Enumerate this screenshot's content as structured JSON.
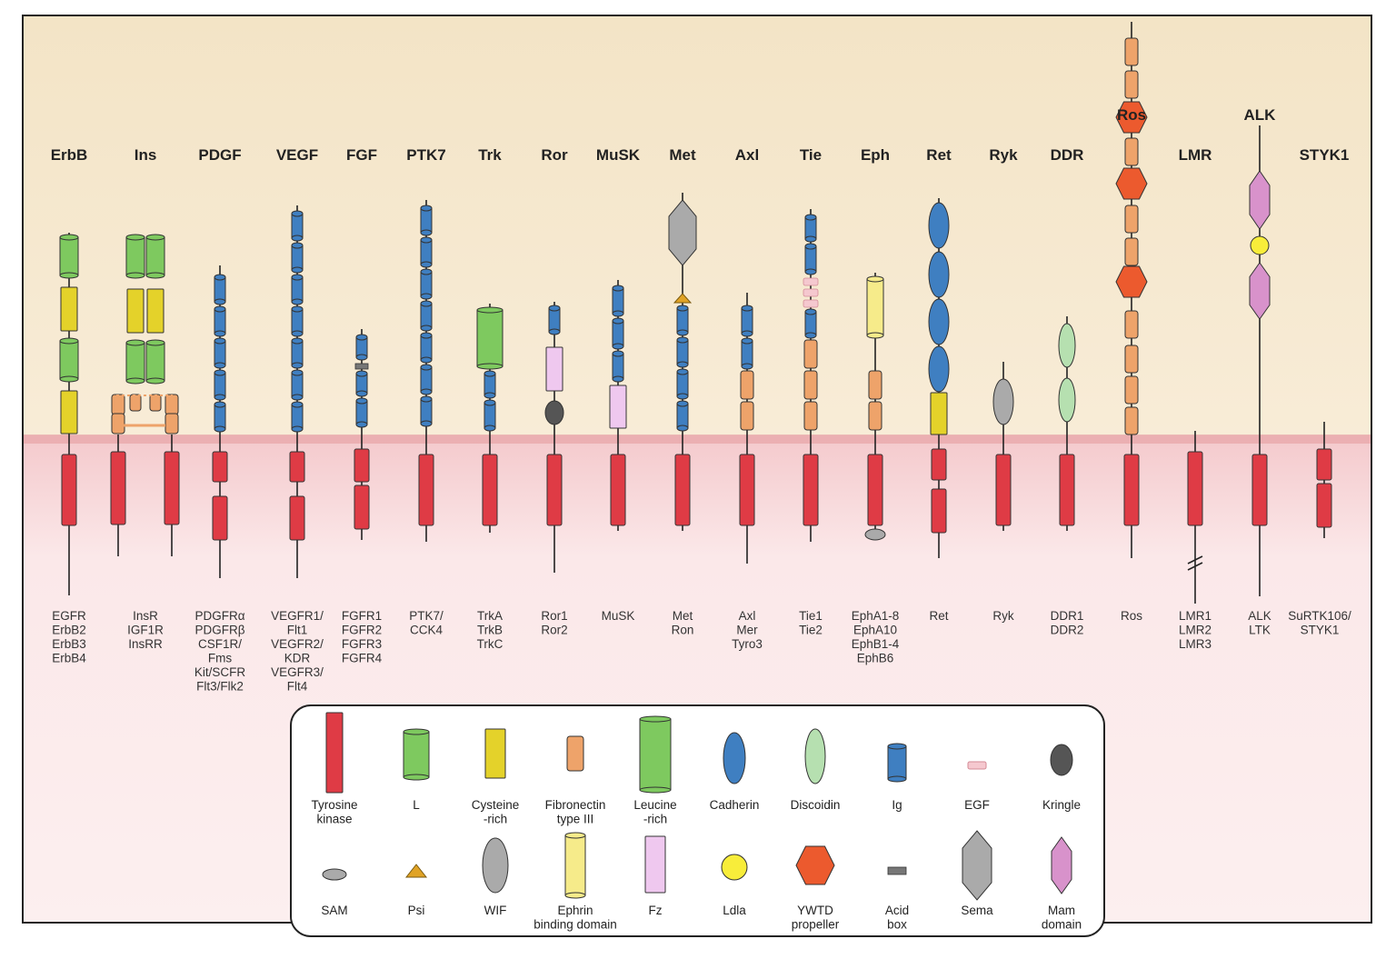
{
  "colors": {
    "bg_top": "#f4e7cd",
    "bg_top_light": "#f9eedb",
    "bg_bottom": "#fbeaea",
    "membrane": "#e9a9a9",
    "kinase": "#df3b45",
    "kinase_stroke": "#9c1f27",
    "l_domain": "#7ec95f",
    "cys": "#e4d22a",
    "fn3": "#eea36a",
    "ig": "#3f7fc1",
    "cadherin": "#3f7fc1",
    "discoidin": "#b6e0b0",
    "egf": "#f5c8cf",
    "kringle": "#555555",
    "sam": "#aaaaaa",
    "psi": "#e0a326",
    "wif": "#aaaaaa",
    "ephrin": "#f6eb8a",
    "fz": "#efc8ef",
    "ldla": "#f8ed3a",
    "ywtd": "#ec5a2e",
    "acid": "#777777",
    "sema": "#aaaaaa",
    "mam": "#d892cb"
  },
  "families": [
    {
      "name": "ErbB",
      "members": [
        "EGFR",
        "ErbB2",
        "ErbB3",
        "ErbB4"
      ]
    },
    {
      "name": "Ins",
      "members": [
        "InsR",
        "IGF1R",
        "InsRR"
      ]
    },
    {
      "name": "PDGF",
      "members": [
        "PDGFRα",
        "PDGFRβ",
        "CSF1R/",
        "Fms",
        "Kit/SCFR",
        "Flt3/Flk2"
      ]
    },
    {
      "name": "VEGF",
      "members": [
        "VEGFR1/",
        "Flt1",
        "VEGFR2/",
        "KDR",
        "VEGFR3/",
        "Flt4"
      ]
    },
    {
      "name": "FGF",
      "members": [
        "FGFR1",
        "FGFR2",
        "FGFR3",
        "FGFR4"
      ]
    },
    {
      "name": "PTK7",
      "members": [
        "PTK7/",
        "CCK4"
      ]
    },
    {
      "name": "Trk",
      "members": [
        "TrkA",
        "TrkB",
        "TrkC"
      ]
    },
    {
      "name": "Ror",
      "members": [
        "Ror1",
        "Ror2"
      ]
    },
    {
      "name": "MuSK",
      "members": [
        "MuSK"
      ]
    },
    {
      "name": "Met",
      "members": [
        "Met",
        "Ron"
      ]
    },
    {
      "name": "Axl",
      "members": [
        "Axl",
        "Mer",
        "Tyro3"
      ]
    },
    {
      "name": "Tie",
      "members": [
        "Tie1",
        "Tie2"
      ]
    },
    {
      "name": "Eph",
      "members": [
        "EphA1-8",
        "EphA10",
        "EphB1-4",
        "EphB6"
      ]
    },
    {
      "name": "Ret",
      "members": [
        "Ret"
      ]
    },
    {
      "name": "Ryk",
      "members": [
        "Ryk"
      ]
    },
    {
      "name": "DDR",
      "members": [
        "DDR1",
        "DDR2"
      ]
    },
    {
      "name": "Ros",
      "members": [
        "Ros"
      ]
    },
    {
      "name": "LMR",
      "members": [
        "LMR1",
        "LMR2",
        "LMR3"
      ]
    },
    {
      "name": "ALK",
      "members": [
        "ALK",
        "LTK"
      ]
    },
    {
      "name": "STYK1",
      "members": [
        "SuRTK106/",
        "STYK1"
      ]
    }
  ],
  "legend": [
    {
      "shape": "kinase",
      "lines": [
        "Tyrosine",
        "kinase"
      ]
    },
    {
      "shape": "l",
      "lines": [
        "L"
      ]
    },
    {
      "shape": "cys",
      "lines": [
        "Cysteine",
        "-rich"
      ]
    },
    {
      "shape": "fn3",
      "lines": [
        "Fibronectin",
        "type III"
      ]
    },
    {
      "shape": "leucine",
      "lines": [
        "Leucine",
        "-rich"
      ]
    },
    {
      "shape": "cadherin",
      "lines": [
        "Cadherin"
      ]
    },
    {
      "shape": "discoidin",
      "lines": [
        "Discoidin"
      ]
    },
    {
      "shape": "ig",
      "lines": [
        "Ig"
      ]
    },
    {
      "shape": "egf",
      "lines": [
        "EGF"
      ]
    },
    {
      "shape": "kringle",
      "lines": [
        "Kringle"
      ]
    },
    {
      "shape": "sam",
      "lines": [
        "SAM"
      ]
    },
    {
      "shape": "psi",
      "lines": [
        "Psi"
      ]
    },
    {
      "shape": "wif",
      "lines": [
        "WIF"
      ]
    },
    {
      "shape": "ephrin",
      "lines": [
        "Ephrin",
        "binding domain"
      ]
    },
    {
      "shape": "fz",
      "lines": [
        "Fz"
      ]
    },
    {
      "shape": "ldla",
      "lines": [
        "Ldla"
      ]
    },
    {
      "shape": "ywtd",
      "lines": [
        "YWTD",
        "propeller"
      ]
    },
    {
      "shape": "acid",
      "lines": [
        "Acid",
        "box"
      ]
    },
    {
      "shape": "sema",
      "lines": [
        "Sema"
      ]
    },
    {
      "shape": "mam",
      "lines": [
        "Mam",
        "domain"
      ]
    }
  ]
}
